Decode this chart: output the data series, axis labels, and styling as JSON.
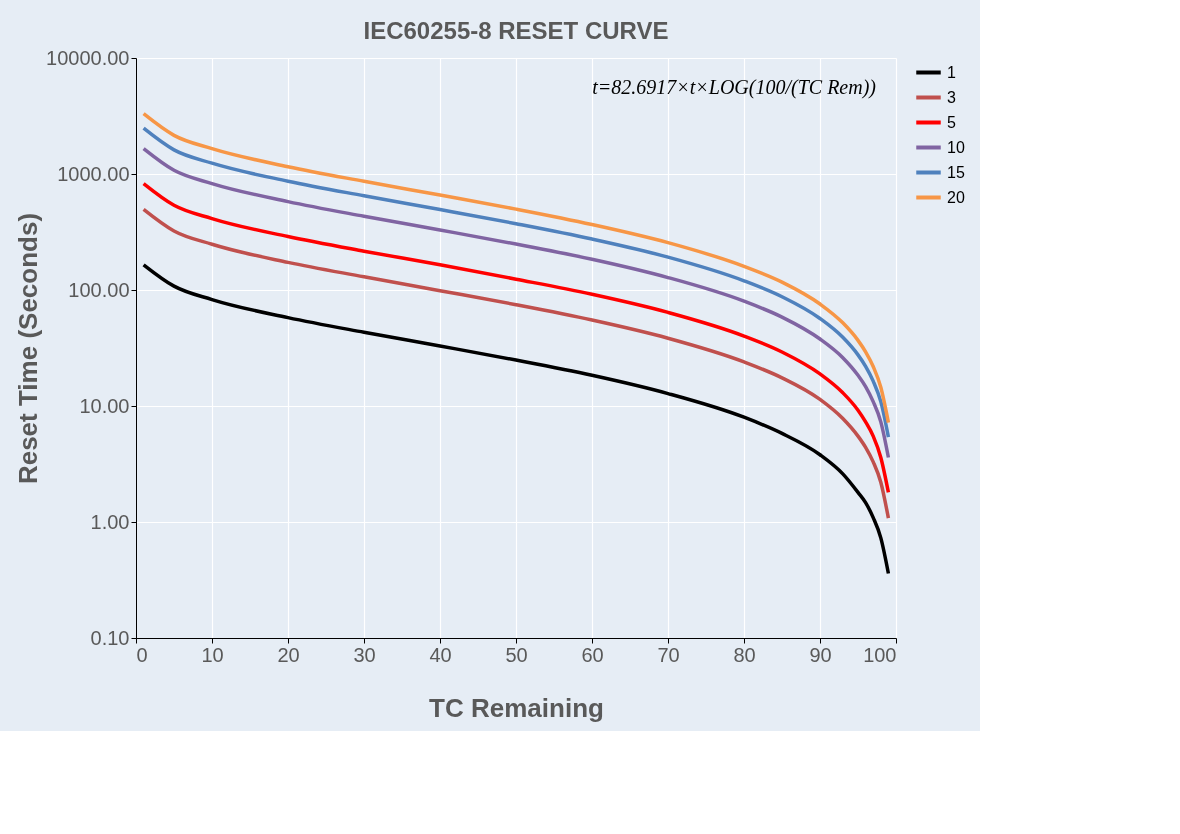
{
  "chart_data": {
    "type": "line",
    "title": "IEC60255-8 RESET CURVE",
    "xlabel": "TC Remaining",
    "ylabel": "Reset Time (Seconds)",
    "annotations": [
      "t=82.6917×t×LOG(100/(TC Rem))"
    ],
    "x": [
      1,
      5,
      10,
      20,
      30,
      40,
      50,
      60,
      70,
      80,
      85,
      90,
      93,
      95,
      96,
      97,
      98,
      99
    ],
    "series": [
      {
        "name": "1",
        "color": "#000000",
        "values": [
          165,
          108,
          82.7,
          57.8,
          43.2,
          32.9,
          24.9,
          18.4,
          12.8,
          8.0,
          5.8,
          3.8,
          2.6,
          1.8,
          1.47,
          1.09,
          0.73,
          0.36
        ]
      },
      {
        "name": "3",
        "color": "#c0504d",
        "values": [
          496,
          323,
          248,
          173,
          130,
          98.7,
          74.7,
          55.1,
          38.4,
          24.0,
          17.5,
          11.4,
          7.8,
          5.5,
          4.4,
          3.3,
          2.2,
          1.08
        ]
      },
      {
        "name": "5",
        "color": "#ff0000",
        "values": [
          827,
          538,
          413,
          289,
          216,
          165,
          124,
          91.8,
          64.1,
          40.1,
          29.2,
          18.9,
          13.0,
          9.2,
          7.3,
          5.5,
          3.6,
          1.8
        ]
      },
      {
        "name": "10",
        "color": "#8064a2",
        "values": [
          1654,
          1076,
          827,
          578,
          432,
          329,
          249,
          184,
          128,
          80.1,
          58.4,
          37.8,
          26.1,
          18.4,
          14.7,
          10.9,
          7.3,
          3.6
        ]
      },
      {
        "name": "15",
        "color": "#4f81bd",
        "values": [
          2481,
          1614,
          1240,
          867,
          649,
          494,
          373,
          275,
          192,
          120,
          87.5,
          56.8,
          39.1,
          27.6,
          22.0,
          16.4,
          10.9,
          5.4
        ]
      },
      {
        "name": "20",
        "color": "#f79646",
        "values": [
          3308,
          2152,
          1654,
          1156,
          865,
          658,
          498,
          367,
          256,
          160,
          117,
          75.7,
          52.1,
          36.8,
          29.3,
          21.9,
          14.5,
          7.2
        ]
      }
    ],
    "xlim": [
      0,
      100
    ],
    "xticks": [
      0,
      10,
      20,
      30,
      40,
      50,
      60,
      70,
      80,
      90,
      100
    ],
    "ylim": [
      0.1,
      10000
    ],
    "yticks": [
      {
        "value": 0.1,
        "label": "0.10"
      },
      {
        "value": 1,
        "label": "1.00"
      },
      {
        "value": 10,
        "label": "10.00"
      },
      {
        "value": 100,
        "label": "100.00"
      },
      {
        "value": 1000,
        "label": "1000.00"
      },
      {
        "value": 10000,
        "label": "10000.00"
      }
    ],
    "log": "y",
    "grid": true,
    "legend": "right",
    "marker": "none",
    "line_style": "solid"
  }
}
